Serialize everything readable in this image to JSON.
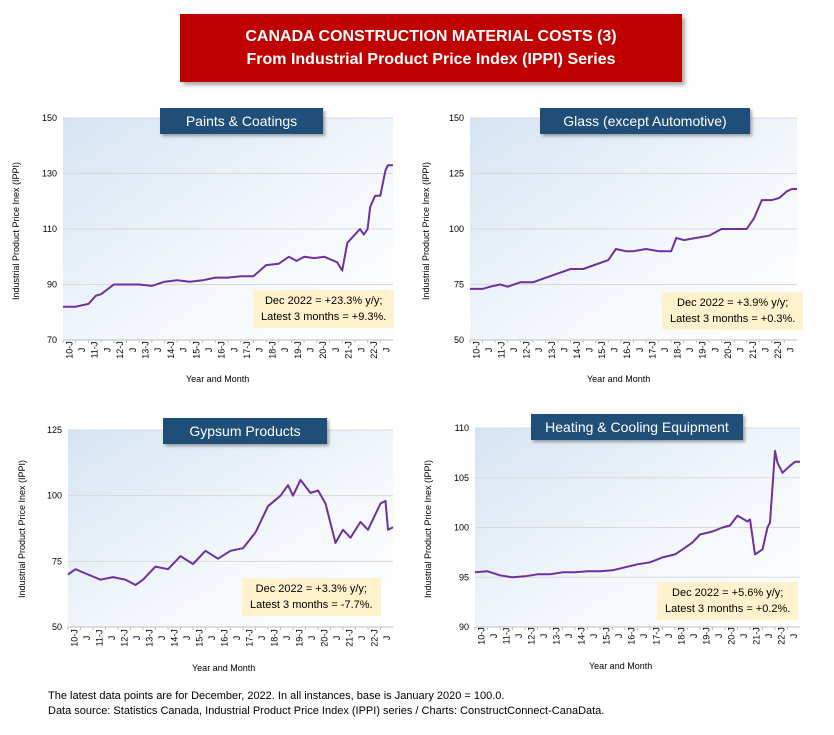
{
  "banner": {
    "line1": "CANADA CONSTRUCTION MATERIAL COSTS (3)",
    "line2": "From Industrial Product Price Index (IPPI) Series"
  },
  "footer": {
    "line1": "The latest data points are for December, 2022. In all instances, base is January 2020 = 100.0.",
    "line2": "Data source: Statistics Canada, Industrial Product Price Index (IPPI) series / Charts: ConstructConnect-CanaData."
  },
  "colors": {
    "line": "#7030a0",
    "title_box": "#1f4e79",
    "banner": "#c00000",
    "note_box": "#fff2cc"
  },
  "chart_data": [
    {
      "type": "line",
      "title": "Paints & Coatings",
      "xlabel": "Year and Month",
      "ylabel": "Industrial Product Price Inex (IPPI)",
      "ylim": [
        70,
        150
      ],
      "yticks": [
        70,
        90,
        110,
        130,
        150
      ],
      "xlim": [
        2010.0,
        2023.0
      ],
      "xticks": [
        "10-J",
        "J",
        "11-J",
        "J",
        "12-J",
        "J",
        "13-J",
        "J",
        "14-J",
        "J",
        "15-J",
        "J",
        "16-J",
        "J",
        "17-J",
        "J",
        "18-J",
        "J",
        "19-J",
        "J",
        "20-J",
        "J",
        "21-J",
        "J",
        "22-J",
        "J"
      ],
      "annotation": [
        "Dec 2022 = +23.3% y/y;",
        "Latest 3 months = +9.3%."
      ],
      "x": [
        2010.0,
        2010.5,
        2011.0,
        2011.3,
        2011.5,
        2012.0,
        2012.5,
        2013.0,
        2013.5,
        2014.0,
        2014.5,
        2015.0,
        2015.5,
        2016.0,
        2016.5,
        2017.0,
        2017.5,
        2018.0,
        2018.5,
        2018.9,
        2019.2,
        2019.5,
        2019.9,
        2020.3,
        2020.8,
        2021.0,
        2021.2,
        2021.5,
        2021.7,
        2021.85,
        2022.0,
        2022.1,
        2022.3,
        2022.5,
        2022.7,
        2022.8,
        2022.9,
        2023.0
      ],
      "y": [
        82,
        82,
        83,
        86,
        86.5,
        90,
        90,
        90,
        89.5,
        91,
        91.5,
        91,
        91.5,
        92.5,
        92.5,
        93,
        93,
        97,
        97.5,
        100,
        98.5,
        100,
        99.5,
        100,
        98,
        95,
        105,
        108,
        110,
        108,
        110,
        118,
        122,
        122,
        131,
        133,
        133,
        133
      ]
    },
    {
      "type": "line",
      "title": "Glass (except Automotive)",
      "xlabel": "Year and Month",
      "ylabel": "Industrial Product Price Inex (IPPI)",
      "ylim": [
        50,
        150
      ],
      "yticks": [
        50,
        75,
        100,
        125,
        150
      ],
      "xlim": [
        2010.0,
        2023.0
      ],
      "xticks": [
        "10-J",
        "J",
        "11-J",
        "J",
        "12-J",
        "J",
        "13-J",
        "J",
        "14-J",
        "J",
        "15-J",
        "J",
        "16-J",
        "J",
        "17-J",
        "J",
        "18-J",
        "J",
        "19-J",
        "J",
        "20-J",
        "J",
        "21-J",
        "J",
        "22-J",
        "J"
      ],
      "annotation": [
        "Dec 2022 = +3.9% y/y;",
        "Latest 3 months = +0.3%."
      ],
      "x": [
        2010.0,
        2010.5,
        2010.8,
        2011.2,
        2011.5,
        2012.0,
        2012.5,
        2013.0,
        2013.5,
        2014.0,
        2014.5,
        2015.0,
        2015.5,
        2015.8,
        2016.2,
        2016.5,
        2017.0,
        2017.5,
        2018.0,
        2018.2,
        2018.5,
        2019.0,
        2019.5,
        2020.0,
        2020.5,
        2021.0,
        2021.3,
        2021.6,
        2022.0,
        2022.3,
        2022.6,
        2022.8,
        2023.0
      ],
      "y": [
        73,
        73,
        74,
        75,
        74,
        76,
        76,
        78,
        80,
        82,
        82,
        84,
        86,
        91,
        90,
        90,
        91,
        90,
        90,
        96,
        95,
        96,
        97,
        100,
        100,
        100,
        105,
        113,
        113,
        114,
        117,
        118,
        118
      ]
    },
    {
      "type": "line",
      "title": "Gypsum Products",
      "xlabel": "Year and Month",
      "ylabel": "Industrial Product Price Inex (IPPI)",
      "ylim": [
        50,
        125
      ],
      "yticks": [
        50,
        75,
        100,
        125
      ],
      "xlim": [
        2010.0,
        2023.0
      ],
      "xticks": [
        "10-J",
        "J",
        "11-J",
        "J",
        "12-J",
        "J",
        "13-J",
        "J",
        "14-J",
        "J",
        "15-J",
        "J",
        "16-J",
        "J",
        "17-J",
        "J",
        "18-J",
        "J",
        "19-J",
        "J",
        "20-J",
        "J",
        "21-J",
        "J",
        "22-J",
        "J"
      ],
      "annotation": [
        "Dec 2022 = +3.3% y/y;",
        "Latest 3 months = -7.7%."
      ],
      "x": [
        2010.0,
        2010.3,
        2010.8,
        2011.3,
        2011.8,
        2012.3,
        2012.7,
        2013.0,
        2013.5,
        2014.0,
        2014.5,
        2015.0,
        2015.5,
        2016.0,
        2016.5,
        2017.0,
        2017.5,
        2018.0,
        2018.5,
        2018.8,
        2019.0,
        2019.3,
        2019.7,
        2020.0,
        2020.3,
        2020.7,
        2021.0,
        2021.3,
        2021.7,
        2022.0,
        2022.3,
        2022.5,
        2022.7,
        2022.8,
        2023.0
      ],
      "y": [
        70,
        72,
        70,
        68,
        69,
        68,
        66,
        68,
        73,
        72,
        77,
        74,
        79,
        76,
        79,
        80,
        86,
        96,
        100,
        104,
        100,
        106,
        101,
        102,
        97,
        82,
        87,
        84,
        90,
        87,
        93,
        97,
        98,
        87,
        88
      ]
    },
    {
      "type": "line",
      "title": "Heating & Cooling Equipment",
      "xlabel": "Year and Month",
      "ylabel": "Industrial Product Price Inex (IPPI)",
      "ylim": [
        90,
        110
      ],
      "yticks": [
        90,
        95,
        100,
        105,
        110
      ],
      "xlim": [
        2010.0,
        2023.0
      ],
      "xticks": [
        "10-J",
        "J",
        "11-J",
        "J",
        "12-J",
        "J",
        "13-J",
        "J",
        "14-J",
        "J",
        "15-J",
        "J",
        "16-J",
        "J",
        "17-J",
        "J",
        "18-J",
        "J",
        "19-J",
        "J",
        "20-J",
        "J",
        "21-J",
        "J",
        "22-J",
        "J"
      ],
      "annotation": [
        "Dec 2022 = +5.6% y/y;",
        "Latest 3 months = +0.2%."
      ],
      "x": [
        2010.0,
        2010.5,
        2011.0,
        2011.5,
        2012.0,
        2012.5,
        2013.0,
        2013.5,
        2014.0,
        2014.5,
        2015.0,
        2015.5,
        2016.0,
        2016.5,
        2017.0,
        2017.5,
        2018.0,
        2018.3,
        2018.7,
        2019.0,
        2019.5,
        2019.9,
        2020.2,
        2020.5,
        2020.9,
        2021.0,
        2021.2,
        2021.5,
        2021.7,
        2021.8,
        2022.0,
        2022.1,
        2022.3,
        2022.6,
        2022.8,
        2023.0
      ],
      "y": [
        95.5,
        95.6,
        95.2,
        95.0,
        95.1,
        95.3,
        95.3,
        95.5,
        95.5,
        95.6,
        95.6,
        95.7,
        96.0,
        96.3,
        96.5,
        97.0,
        97.3,
        97.8,
        98.5,
        99.3,
        99.6,
        100.0,
        100.2,
        101.2,
        100.6,
        100.8,
        97.3,
        97.8,
        100.0,
        100.5,
        107.7,
        106.5,
        105.5,
        106.2,
        106.6,
        106.6
      ]
    }
  ]
}
